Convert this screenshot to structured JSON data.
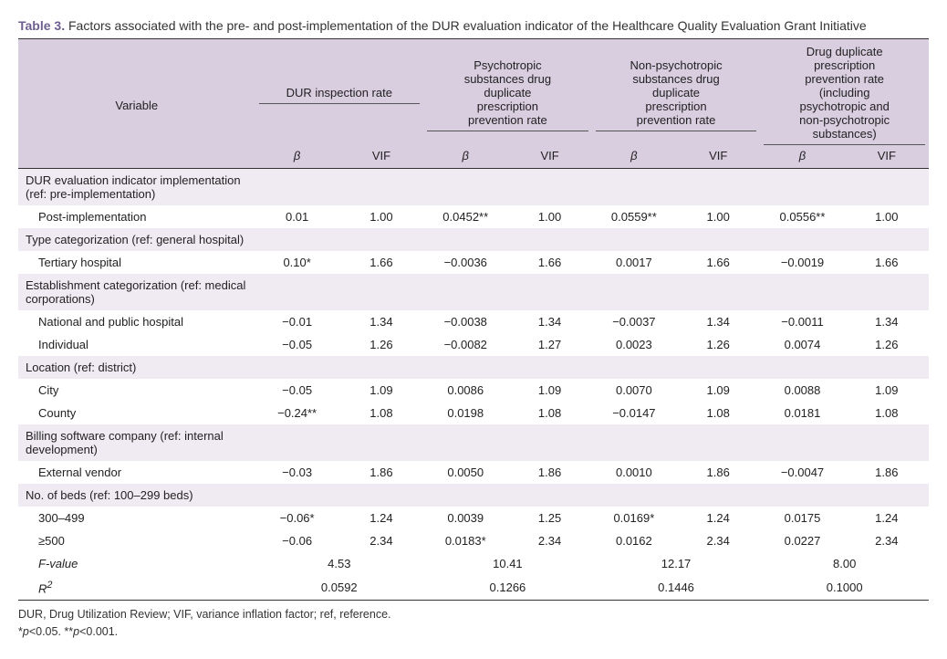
{
  "caption_bold": "Table 3.",
  "caption_rest": " Factors associated with the pre- and post-implementation of the DUR evaluation indicator of the Healthcare Quality Evaluation Grant Initiative",
  "col_variable": "Variable",
  "groups": [
    "DUR inspection rate",
    "Psychotropic substances drug duplicate prescription prevention rate",
    "Non-psychotropic substances drug duplicate prescription prevention rate",
    "Drug duplicate prescription prevention rate (including psychotropic and non-psychotropic substances)"
  ],
  "sub_beta": "β",
  "sub_vif": "VIF",
  "rows": [
    {
      "kind": "section",
      "label": "DUR evaluation indicator implementation (ref: pre-implementation)"
    },
    {
      "kind": "data",
      "indent": true,
      "label": "Post-implementation",
      "c": [
        "0.01",
        "1.00",
        "0.0452**",
        "1.00",
        "0.0559**",
        "1.00",
        "0.0556**",
        "1.00"
      ]
    },
    {
      "kind": "section",
      "label": "Type categorization (ref: general hospital)"
    },
    {
      "kind": "data",
      "indent": true,
      "label": "Tertiary hospital",
      "c": [
        "0.10*",
        "1.66",
        "−0.0036",
        "1.66",
        "0.0017",
        "1.66",
        "−0.0019",
        "1.66"
      ]
    },
    {
      "kind": "section",
      "label": "Establishment categorization (ref: medical corporations)"
    },
    {
      "kind": "data",
      "indent": true,
      "label": "National and public hospital",
      "c": [
        "−0.01",
        "1.34",
        "−0.0038",
        "1.34",
        "−0.0037",
        "1.34",
        "−0.0011",
        "1.34"
      ]
    },
    {
      "kind": "data",
      "indent": true,
      "label": "Individual",
      "c": [
        "−0.05",
        "1.26",
        "−0.0082",
        "1.27",
        "0.0023",
        "1.26",
        "0.0074",
        "1.26"
      ]
    },
    {
      "kind": "section",
      "label": "Location (ref: district)"
    },
    {
      "kind": "data",
      "indent": true,
      "label": "City",
      "c": [
        "−0.05",
        "1.09",
        "0.0086",
        "1.09",
        "0.0070",
        "1.09",
        "0.0088",
        "1.09"
      ]
    },
    {
      "kind": "data",
      "indent": true,
      "label": "County",
      "c": [
        "−0.24**",
        "1.08",
        "0.0198",
        "1.08",
        "−0.0147",
        "1.08",
        "0.0181",
        "1.08"
      ]
    },
    {
      "kind": "section",
      "label": "Billing software company (ref: internal development)"
    },
    {
      "kind": "data",
      "indent": true,
      "label": "External vendor",
      "c": [
        "−0.03",
        "1.86",
        "0.0050",
        "1.86",
        "0.0010",
        "1.86",
        "−0.0047",
        "1.86"
      ]
    },
    {
      "kind": "section",
      "label": "No. of beds (ref: 100–299 beds)"
    },
    {
      "kind": "data",
      "indent": true,
      "label": "300–499",
      "c": [
        "−0.06*",
        "1.24",
        "0.0039",
        "1.25",
        "0.0169*",
        "1.24",
        "0.0175",
        "1.24"
      ]
    },
    {
      "kind": "data",
      "indent": true,
      "label": "≥500",
      "c": [
        "−0.06",
        "2.34",
        "0.0183*",
        "2.34",
        "0.0162",
        "2.34",
        "0.0227",
        "2.34"
      ]
    }
  ],
  "stats": [
    {
      "label": "F-value",
      "html": "<i>F</i>-value",
      "vals": [
        "4.53",
        "10.41",
        "12.17",
        "8.00"
      ]
    },
    {
      "label": "R2",
      "html": "<i>R</i><sup>2</sup>",
      "vals": [
        "0.0592",
        "0.1266",
        "0.1446",
        "0.1000"
      ],
      "last": true
    }
  ],
  "footnote1": "DUR, Drug Utilization Review; VIF, variance inflation factor; ref, reference.",
  "footnote2_a": "*",
  "footnote2_b": "p",
  "footnote2_c": "<0.05. **",
  "footnote2_d": "p",
  "footnote2_e": "<0.001.",
  "colors": {
    "header_bg": "#d9cde0",
    "section_bg": "#f0eaf3",
    "border": "#333333",
    "caption_bold": "#6e5f91"
  }
}
